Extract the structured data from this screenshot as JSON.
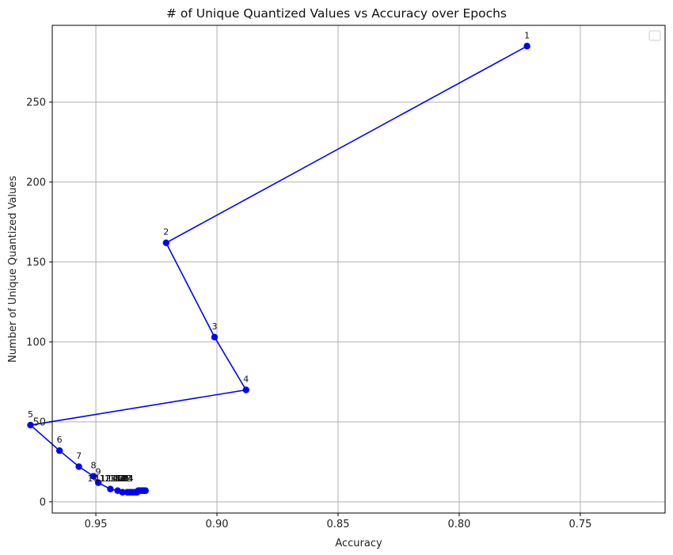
{
  "chart_data": {
    "type": "line",
    "title": "# of Unique Quantized Values vs Accuracy over Epochs",
    "xlabel": "Accuracy",
    "ylabel": "Number of Unique Quantized Values",
    "x_axis_inverted": true,
    "xlim": [
      0.968,
      0.715
    ],
    "ylim": [
      -7,
      298
    ],
    "xticks": [
      0.95,
      0.9,
      0.85,
      0.8,
      0.75
    ],
    "xtick_labels": [
      "0.95",
      "0.90",
      "0.85",
      "0.80",
      "0.75"
    ],
    "yticks": [
      0,
      50,
      100,
      150,
      200,
      250
    ],
    "ytick_labels": [
      "0",
      "50",
      "100",
      "150",
      "200",
      "250"
    ],
    "grid": true,
    "legend": "top-right (empty)",
    "series": [
      {
        "color": "#0000ff",
        "marker": "circle",
        "points": [
          {
            "label": "1",
            "x": 0.772,
            "y": 285
          },
          {
            "label": "2",
            "x": 0.921,
            "y": 162
          },
          {
            "label": "3",
            "x": 0.901,
            "y": 103
          },
          {
            "label": "4",
            "x": 0.888,
            "y": 70
          },
          {
            "label": "5",
            "x": 0.977,
            "y": 48
          },
          {
            "label": "6",
            "x": 0.965,
            "y": 32
          },
          {
            "label": "7",
            "x": 0.957,
            "y": 22
          },
          {
            "label": "8",
            "x": 0.951,
            "y": 16
          },
          {
            "label": "9",
            "x": 0.949,
            "y": 12
          },
          {
            "label": "10",
            "x": 0.944,
            "y": 8
          },
          {
            "label": "11",
            "x": 0.941,
            "y": 7
          },
          {
            "label": "12",
            "x": 0.939,
            "y": 6
          },
          {
            "label": "13",
            "x": 0.937,
            "y": 6
          },
          {
            "label": "14",
            "x": 0.936,
            "y": 6
          },
          {
            "label": "15",
            "x": 0.935,
            "y": 6
          },
          {
            "label": "16",
            "x": 0.934,
            "y": 6
          },
          {
            "label": "17",
            "x": 0.933,
            "y": 6
          },
          {
            "label": "18",
            "x": 0.9325,
            "y": 7
          },
          {
            "label": "19",
            "x": 0.932,
            "y": 7
          },
          {
            "label": "20",
            "x": 0.9315,
            "y": 7
          },
          {
            "label": "21",
            "x": 0.931,
            "y": 7
          },
          {
            "label": "22",
            "x": 0.9305,
            "y": 7
          },
          {
            "label": "23",
            "x": 0.93,
            "y": 7
          },
          {
            "label": "24",
            "x": 0.9295,
            "y": 7
          }
        ]
      }
    ]
  }
}
